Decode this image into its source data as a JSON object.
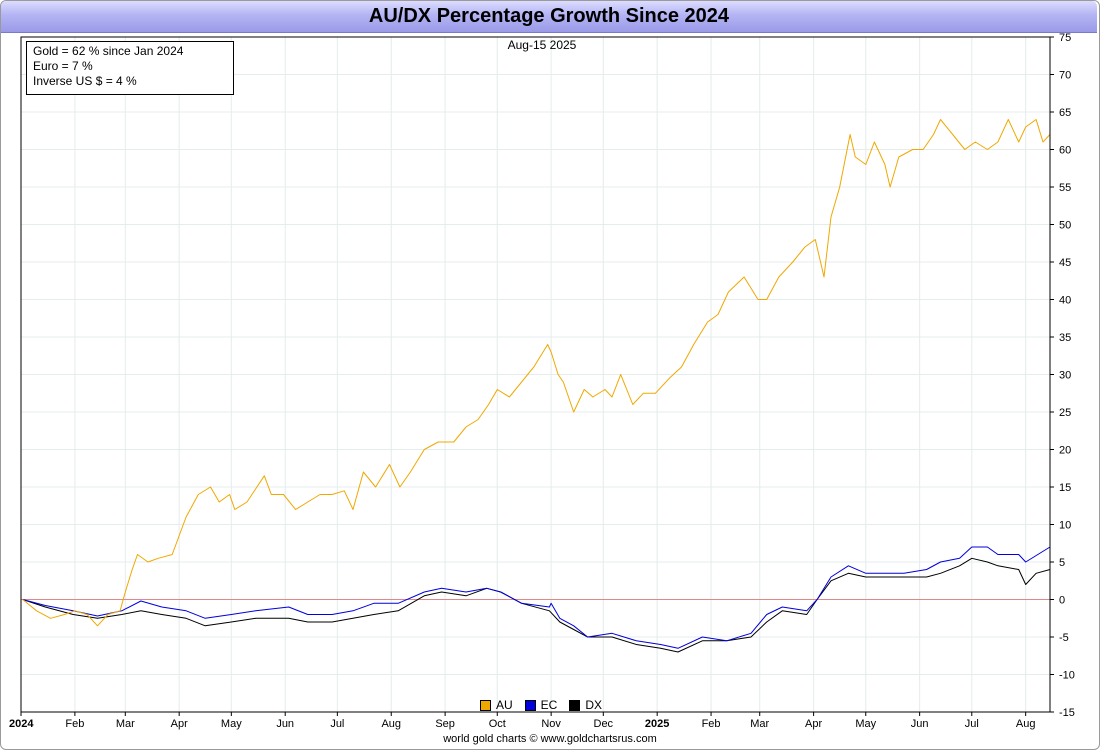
{
  "title": "AU/DX Percentage Growth Since 2024",
  "date_label": "Aug-15  2025",
  "stats": [
    "Gold = 62 % since Jan 2024",
    "Euro = 7 %",
    "Inverse US $ = 4 %"
  ],
  "footer": "world gold charts © www.goldchartsrus.com",
  "colors": {
    "AU": "#f0a800",
    "EC": "#0000dd",
    "DX": "#000000",
    "zero_line": "#e08888",
    "grid": "#e4ecec",
    "title_bar": "#b4b4f4"
  },
  "chart_data": {
    "type": "line",
    "x_tick_labels": [
      "2024",
      "Feb",
      "Mar",
      "Apr",
      "May",
      "Jun",
      "Jul",
      "Aug",
      "Sep",
      "Oct",
      "Nov",
      "Dec",
      "2025",
      "Feb",
      "Mar",
      "Apr",
      "May",
      "Jun",
      "Jul",
      "Aug"
    ],
    "bold_x_labels": [
      "2024",
      "2025"
    ],
    "y_ticks": [
      75,
      70,
      65,
      60,
      55,
      50,
      45,
      40,
      35,
      30,
      25,
      20,
      15,
      10,
      5,
      0,
      -5,
      -10,
      -15
    ],
    "ylim": [
      -15,
      75
    ],
    "xlim": [
      "2024-01-01",
      "2025-08-15"
    ],
    "y_axis_side": "right",
    "grid": true,
    "legend_position": "bottom-center",
    "series": [
      {
        "name": "AU",
        "points": [
          [
            "2024-01-02",
            0
          ],
          [
            "2024-01-10",
            -1.5
          ],
          [
            "2024-01-18",
            -2.5
          ],
          [
            "2024-01-26",
            -2
          ],
          [
            "2024-02-01",
            -1.5
          ],
          [
            "2024-02-08",
            -2
          ],
          [
            "2024-02-14",
            -3.5
          ],
          [
            "2024-02-20",
            -2
          ],
          [
            "2024-02-27",
            -1.5
          ],
          [
            "2024-03-01",
            1
          ],
          [
            "2024-03-05",
            4
          ],
          [
            "2024-03-08",
            6
          ],
          [
            "2024-03-14",
            5
          ],
          [
            "2024-03-20",
            5.5
          ],
          [
            "2024-03-28",
            6
          ],
          [
            "2024-04-05",
            11
          ],
          [
            "2024-04-12",
            14
          ],
          [
            "2024-04-19",
            15
          ],
          [
            "2024-04-24",
            13
          ],
          [
            "2024-04-30",
            14
          ],
          [
            "2024-05-03",
            12
          ],
          [
            "2024-05-10",
            13
          ],
          [
            "2024-05-20",
            16.5
          ],
          [
            "2024-05-24",
            14
          ],
          [
            "2024-05-31",
            14
          ],
          [
            "2024-06-07",
            12
          ],
          [
            "2024-06-14",
            13
          ],
          [
            "2024-06-21",
            14
          ],
          [
            "2024-06-28",
            14
          ],
          [
            "2024-07-05",
            14.5
          ],
          [
            "2024-07-10",
            12
          ],
          [
            "2024-07-16",
            17
          ],
          [
            "2024-07-23",
            15
          ],
          [
            "2024-07-31",
            18
          ],
          [
            "2024-08-06",
            15
          ],
          [
            "2024-08-12",
            17
          ],
          [
            "2024-08-20",
            20
          ],
          [
            "2024-08-28",
            21
          ],
          [
            "2024-09-06",
            21
          ],
          [
            "2024-09-13",
            23
          ],
          [
            "2024-09-20",
            24
          ],
          [
            "2024-09-26",
            26
          ],
          [
            "2024-10-01",
            28
          ],
          [
            "2024-10-08",
            27
          ],
          [
            "2024-10-15",
            29
          ],
          [
            "2024-10-22",
            31
          ],
          [
            "2024-10-30",
            34
          ],
          [
            "2024-11-01",
            33
          ],
          [
            "2024-11-05",
            30
          ],
          [
            "2024-11-08",
            29
          ],
          [
            "2024-11-14",
            25
          ],
          [
            "2024-11-20",
            28
          ],
          [
            "2024-11-25",
            27
          ],
          [
            "2024-12-02",
            28
          ],
          [
            "2024-12-06",
            27
          ],
          [
            "2024-12-11",
            30
          ],
          [
            "2024-12-18",
            26
          ],
          [
            "2024-12-24",
            27.5
          ],
          [
            "2024-12-31",
            27.5
          ],
          [
            "2025-01-08",
            29.5
          ],
          [
            "2025-01-15",
            31
          ],
          [
            "2025-01-22",
            34
          ],
          [
            "2025-01-30",
            37
          ],
          [
            "2025-02-05",
            38
          ],
          [
            "2025-02-11",
            41
          ],
          [
            "2025-02-20",
            43
          ],
          [
            "2025-02-28",
            40
          ],
          [
            "2025-03-05",
            40
          ],
          [
            "2025-03-12",
            43
          ],
          [
            "2025-03-20",
            45
          ],
          [
            "2025-03-27",
            47
          ],
          [
            "2025-04-02",
            48
          ],
          [
            "2025-04-07",
            43
          ],
          [
            "2025-04-11",
            51
          ],
          [
            "2025-04-16",
            55
          ],
          [
            "2025-04-22",
            62
          ],
          [
            "2025-04-25",
            59
          ],
          [
            "2025-05-01",
            58
          ],
          [
            "2025-05-06",
            61
          ],
          [
            "2025-05-12",
            58
          ],
          [
            "2025-05-15",
            55
          ],
          [
            "2025-05-20",
            59
          ],
          [
            "2025-05-28",
            60
          ],
          [
            "2025-06-03",
            60
          ],
          [
            "2025-06-09",
            62
          ],
          [
            "2025-06-13",
            64
          ],
          [
            "2025-06-20",
            62
          ],
          [
            "2025-06-27",
            60
          ],
          [
            "2025-07-03",
            61
          ],
          [
            "2025-07-10",
            60
          ],
          [
            "2025-07-16",
            61
          ],
          [
            "2025-07-22",
            64
          ],
          [
            "2025-07-28",
            61
          ],
          [
            "2025-08-01",
            63
          ],
          [
            "2025-08-07",
            64
          ],
          [
            "2025-08-11",
            61
          ],
          [
            "2025-08-15",
            62
          ]
        ]
      },
      {
        "name": "EC",
        "points": [
          [
            "2024-01-02",
            0
          ],
          [
            "2024-01-15",
            -0.8
          ],
          [
            "2024-01-31",
            -1.5
          ],
          [
            "2024-02-14",
            -2.2
          ],
          [
            "2024-02-28",
            -1.5
          ],
          [
            "2024-03-10",
            -0.2
          ],
          [
            "2024-03-22",
            -1
          ],
          [
            "2024-04-05",
            -1.5
          ],
          [
            "2024-04-16",
            -2.5
          ],
          [
            "2024-05-01",
            -2
          ],
          [
            "2024-05-15",
            -1.5
          ],
          [
            "2024-06-03",
            -1
          ],
          [
            "2024-06-14",
            -2
          ],
          [
            "2024-06-28",
            -2
          ],
          [
            "2024-07-10",
            -1.5
          ],
          [
            "2024-07-22",
            -0.5
          ],
          [
            "2024-08-05",
            -0.5
          ],
          [
            "2024-08-20",
            1
          ],
          [
            "2024-08-30",
            1.5
          ],
          [
            "2024-09-13",
            1
          ],
          [
            "2024-09-25",
            1.5
          ],
          [
            "2024-10-03",
            1
          ],
          [
            "2024-10-15",
            -0.5
          ],
          [
            "2024-10-31",
            -1
          ],
          [
            "2024-11-01",
            -0.5
          ],
          [
            "2024-11-06",
            -2.5
          ],
          [
            "2024-11-14",
            -3.5
          ],
          [
            "2024-11-22",
            -5
          ],
          [
            "2024-12-06",
            -4.5
          ],
          [
            "2024-12-20",
            -5.5
          ],
          [
            "2025-01-03",
            -6
          ],
          [
            "2025-01-13",
            -6.5
          ],
          [
            "2025-01-27",
            -5
          ],
          [
            "2025-02-10",
            -5.5
          ],
          [
            "2025-02-24",
            -4.5
          ],
          [
            "2025-03-05",
            -2
          ],
          [
            "2025-03-14",
            -1
          ],
          [
            "2025-03-28",
            -1.5
          ],
          [
            "2025-04-03",
            0
          ],
          [
            "2025-04-11",
            3
          ],
          [
            "2025-04-21",
            4.5
          ],
          [
            "2025-05-01",
            3.5
          ],
          [
            "2025-05-12",
            3.5
          ],
          [
            "2025-05-23",
            3.5
          ],
          [
            "2025-06-05",
            4
          ],
          [
            "2025-06-13",
            5
          ],
          [
            "2025-06-24",
            5.5
          ],
          [
            "2025-07-01",
            7
          ],
          [
            "2025-07-10",
            7
          ],
          [
            "2025-07-16",
            6
          ],
          [
            "2025-07-28",
            6
          ],
          [
            "2025-08-01",
            5
          ],
          [
            "2025-08-15",
            7
          ]
        ]
      },
      {
        "name": "DX",
        "points": [
          [
            "2024-01-02",
            0
          ],
          [
            "2024-01-15",
            -1
          ],
          [
            "2024-01-31",
            -2
          ],
          [
            "2024-02-14",
            -2.5
          ],
          [
            "2024-02-28",
            -2
          ],
          [
            "2024-03-10",
            -1.5
          ],
          [
            "2024-03-22",
            -2
          ],
          [
            "2024-04-05",
            -2.5
          ],
          [
            "2024-04-16",
            -3.5
          ],
          [
            "2024-05-01",
            -3
          ],
          [
            "2024-05-15",
            -2.5
          ],
          [
            "2024-06-03",
            -2.5
          ],
          [
            "2024-06-14",
            -3
          ],
          [
            "2024-06-28",
            -3
          ],
          [
            "2024-07-10",
            -2.5
          ],
          [
            "2024-07-22",
            -2
          ],
          [
            "2024-08-05",
            -1.5
          ],
          [
            "2024-08-20",
            0.5
          ],
          [
            "2024-08-30",
            1
          ],
          [
            "2024-09-13",
            0.5
          ],
          [
            "2024-09-25",
            1.5
          ],
          [
            "2024-10-03",
            1
          ],
          [
            "2024-10-15",
            -0.5
          ],
          [
            "2024-10-31",
            -1.5
          ],
          [
            "2024-11-06",
            -3
          ],
          [
            "2024-11-14",
            -4
          ],
          [
            "2024-11-22",
            -5
          ],
          [
            "2024-12-06",
            -5
          ],
          [
            "2024-12-20",
            -6
          ],
          [
            "2025-01-03",
            -6.5
          ],
          [
            "2025-01-13",
            -7
          ],
          [
            "2025-01-27",
            -5.5
          ],
          [
            "2025-02-10",
            -5.5
          ],
          [
            "2025-02-24",
            -5
          ],
          [
            "2025-03-05",
            -3
          ],
          [
            "2025-03-14",
            -1.5
          ],
          [
            "2025-03-28",
            -2
          ],
          [
            "2025-04-03",
            0
          ],
          [
            "2025-04-11",
            2.5
          ],
          [
            "2025-04-21",
            3.5
          ],
          [
            "2025-05-01",
            3
          ],
          [
            "2025-05-12",
            3
          ],
          [
            "2025-05-23",
            3
          ],
          [
            "2025-06-05",
            3
          ],
          [
            "2025-06-13",
            3.5
          ],
          [
            "2025-06-24",
            4.5
          ],
          [
            "2025-07-01",
            5.5
          ],
          [
            "2025-07-10",
            5
          ],
          [
            "2025-07-16",
            4.5
          ],
          [
            "2025-07-28",
            4
          ],
          [
            "2025-08-01",
            2
          ],
          [
            "2025-08-07",
            3.5
          ],
          [
            "2025-08-15",
            4
          ]
        ]
      }
    ]
  }
}
